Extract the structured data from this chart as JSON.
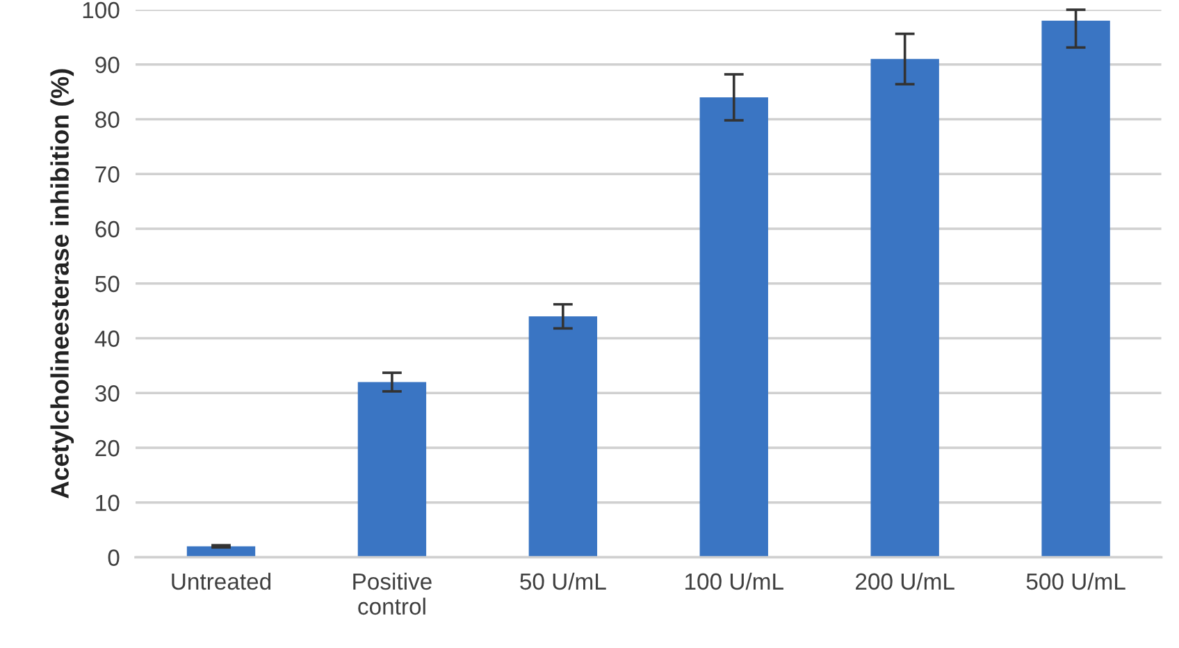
{
  "chart_data": {
    "type": "bar",
    "ylabel": "Acetylcholineesterase inhibition (%)",
    "categories": [
      "Untreated",
      "Positive\ncontrol",
      "50 U/mL",
      "100 U/mL",
      "200 U/mL",
      "500 U/mL"
    ],
    "series": [
      {
        "color": "#3a75c3",
        "values": [
          2,
          32,
          44,
          84,
          91,
          98
        ],
        "errors": [
          0.2,
          1.7,
          2.2,
          4.2,
          4.6,
          [
            93.1,
            100
          ]
        ]
      }
    ],
    "ylim": [
      0,
      100
    ],
    "yticks": [
      0,
      10,
      20,
      30,
      40,
      50,
      60,
      70,
      80,
      90,
      100
    ],
    "grid": "y",
    "legend": false
  }
}
